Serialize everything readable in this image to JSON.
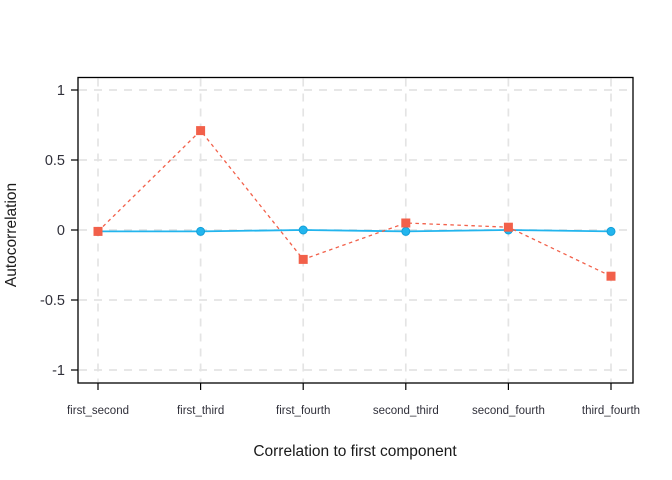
{
  "chart_data": {
    "type": "line",
    "title": "",
    "xlabel": "Correlation to first component",
    "ylabel": "Autocorrelation",
    "categories": [
      "first_second",
      "first_third",
      "first_fourth",
      "second_third",
      "second_fourth",
      "third_fourth"
    ],
    "series": [
      {
        "name": "red-dashed-squares",
        "color": "#f2604a",
        "line_style": "dashed",
        "marker": "square",
        "values": [
          -0.01,
          0.71,
          -0.21,
          0.05,
          0.02,
          -0.33
        ]
      },
      {
        "name": "blue-solid-circles",
        "color": "#22b5ee",
        "marker_stroke": "#139fd8",
        "line_style": "solid",
        "marker": "circle",
        "values": [
          -0.01,
          -0.01,
          0.0,
          -0.01,
          0.0,
          -0.01
        ]
      }
    ],
    "yticks": [
      1,
      0.5,
      0,
      -0.5,
      -1
    ],
    "ytick_labels": [
      "1",
      "0.5",
      "0",
      "-0.5",
      "-1"
    ],
    "ylim": [
      -1.09,
      1.09
    ],
    "grid": "dashed",
    "grid_color": "#e4e4e4",
    "axis_color": "#000000",
    "tick_label_color": "#30303a",
    "axis_title_color": "#1a1a1a",
    "legend": "none",
    "plot_background": "#ffffff"
  }
}
